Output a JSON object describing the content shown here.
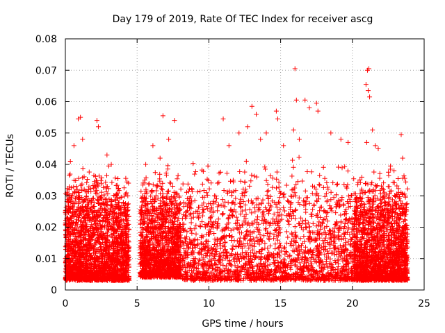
{
  "chart_data": {
    "type": "scatter",
    "title": "Day 179 of 2019, Rate Of TEC Index for receiver ascg",
    "xlabel": "GPS time / hours",
    "ylabel": "ROTI / TECUs",
    "xlim": [
      0,
      25
    ],
    "ylim": [
      0,
      0.08
    ],
    "xticks": [
      0,
      5,
      10,
      15,
      20,
      25
    ],
    "yticks": [
      0,
      0.01,
      0.02,
      0.03,
      0.04,
      0.05,
      0.06,
      0.07,
      0.08
    ],
    "xtick_labels": [
      "0",
      "5",
      "10",
      "15",
      "20",
      "25"
    ],
    "ytick_labels": [
      "0",
      "0.01",
      "0.02",
      "0.03",
      "0.04",
      "0.05",
      "0.06",
      "0.07",
      "0.08"
    ],
    "grid": true,
    "marker": "+",
    "color": "#ff0000",
    "series": [
      {
        "name": "ROTI",
        "segments": [
          {
            "x_start": 0.0,
            "x_end": 4.45,
            "y_low": 0.003,
            "y_high": 0.03
          },
          {
            "x_start": 5.2,
            "x_end": 8.05,
            "y_low": 0.004,
            "y_high": 0.03
          },
          {
            "x_start": 8.15,
            "x_end": 20.1,
            "y_low": 0.003,
            "y_high": 0.033
          },
          {
            "x_start": 20.1,
            "x_end": 23.85,
            "y_low": 0.003,
            "y_high": 0.03
          }
        ],
        "outliers": [
          [
            0.9,
            0.0545
          ],
          [
            1.05,
            0.055
          ],
          [
            2.2,
            0.054
          ],
          [
            2.3,
            0.052
          ],
          [
            1.2,
            0.048
          ],
          [
            0.6,
            0.046
          ],
          [
            3.2,
            0.04
          ],
          [
            0.35,
            0.041
          ],
          [
            2.9,
            0.043
          ],
          [
            6.8,
            0.0555
          ],
          [
            7.6,
            0.054
          ],
          [
            6.1,
            0.046
          ],
          [
            7.2,
            0.048
          ],
          [
            6.6,
            0.042
          ],
          [
            5.6,
            0.04
          ],
          [
            11.0,
            0.0545
          ],
          [
            11.4,
            0.046
          ],
          [
            12.1,
            0.05
          ],
          [
            12.7,
            0.052
          ],
          [
            13.0,
            0.0585
          ],
          [
            13.3,
            0.056
          ],
          [
            14.0,
            0.05
          ],
          [
            14.7,
            0.057
          ],
          [
            14.8,
            0.0545
          ],
          [
            13.6,
            0.048
          ],
          [
            16.0,
            0.0705
          ],
          [
            16.1,
            0.0605
          ],
          [
            16.7,
            0.0605
          ],
          [
            17.0,
            0.058
          ],
          [
            17.5,
            0.0595
          ],
          [
            17.6,
            0.057
          ],
          [
            15.9,
            0.051
          ],
          [
            16.3,
            0.048
          ],
          [
            18.5,
            0.05
          ],
          [
            19.2,
            0.048
          ],
          [
            19.7,
            0.047
          ],
          [
            15.2,
            0.046
          ],
          [
            20.95,
            0.0655
          ],
          [
            21.05,
            0.07
          ],
          [
            21.15,
            0.0705
          ],
          [
            21.1,
            0.0635
          ],
          [
            21.2,
            0.0615
          ],
          [
            21.0,
            0.047
          ],
          [
            21.4,
            0.051
          ],
          [
            21.6,
            0.046
          ],
          [
            21.8,
            0.045
          ],
          [
            23.4,
            0.0495
          ],
          [
            23.5,
            0.042
          ],
          [
            22.9,
            0.038
          ]
        ]
      }
    ]
  }
}
